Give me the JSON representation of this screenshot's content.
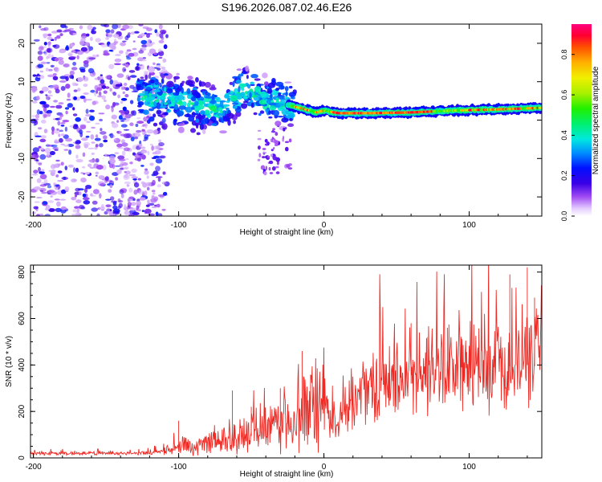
{
  "title": "S196.2026.087.02.46.E26",
  "chart_data": [
    {
      "type": "heatmap",
      "xlabel": "Height of straight line (km)",
      "ylabel": "Frequency (Hz)",
      "xlim": [
        -202,
        150
      ],
      "ylim": [
        -25,
        25
      ],
      "xticks": [
        -200,
        -100,
        0,
        100
      ],
      "yticks": [
        -20,
        -10,
        0,
        10,
        20
      ],
      "tick_labels_x": [
        "-200",
        "-100",
        "0",
        "100"
      ],
      "tick_labels_y": [
        "-20",
        "-10",
        "0",
        "10",
        "20"
      ],
      "colorbar": {
        "label": "Normalized spectral amplitude",
        "range": [
          0,
          0.95
        ],
        "ticks": [
          0.0,
          0.2,
          0.4,
          0.6,
          0.8
        ],
        "tick_labels": [
          "0.0",
          "0.2",
          "0.4",
          "0.6",
          "0.8"
        ]
      },
      "ridge_freq_hz": {
        "x": [
          -130,
          -110,
          -90,
          -70,
          -55,
          -40,
          -25,
          -15,
          -5,
          0,
          10,
          30,
          60,
          90,
          120,
          150
        ],
        "y": [
          6,
          6,
          4,
          3,
          8,
          5,
          4,
          3,
          2,
          2.5,
          1.8,
          1.8,
          2,
          2.5,
          2.8,
          3.2
        ]
      }
    },
    {
      "type": "line",
      "xlabel": "Height of straight line (km)",
      "ylabel": "SNR (10 * v/v)",
      "xlim": [
        -202,
        150
      ],
      "ylim": [
        0,
        830
      ],
      "xticks": [
        -200,
        -100,
        0,
        100
      ],
      "yticks": [
        0,
        200,
        400,
        600,
        800
      ],
      "tick_labels_x": [
        "-200",
        "-100",
        "0",
        "100"
      ],
      "tick_labels_y": [
        "0",
        "200",
        "400",
        "600",
        "800"
      ],
      "series": [
        {
          "name": "SNR",
          "color": "#ee2a24",
          "envelope": {
            "x": [
              -202,
              -120,
              -100,
              -80,
              -60,
              -40,
              -20,
              0,
              5,
              10,
              20,
              40,
              60,
              80,
              100,
              120,
              140,
              150
            ],
            "y": [
              18,
              20,
              40,
              60,
              80,
              110,
              160,
              230,
              160,
              140,
              250,
              310,
              320,
              360,
              380,
              390,
              400,
              390
            ]
          },
          "spikes": [
            {
              "x": -100,
              "y": 160
            },
            {
              "x": -63,
              "y": 290
            },
            {
              "x": -50,
              "y": 220
            },
            {
              "x": -30,
              "y": 300
            },
            {
              "x": -15,
              "y": 460
            },
            {
              "x": 60,
              "y": 580
            },
            {
              "x": 85,
              "y": 560
            },
            {
              "x": 128,
              "y": 790
            },
            {
              "x": 140,
              "y": 820
            },
            {
              "x": 145,
              "y": 690
            }
          ]
        }
      ]
    }
  ]
}
